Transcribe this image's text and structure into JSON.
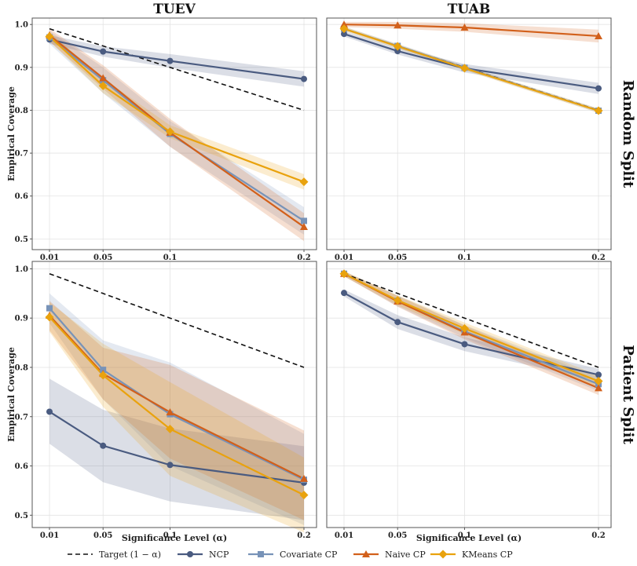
{
  "chart_data": {
    "type": "line",
    "column_titles": [
      "TUEV",
      "TUAB"
    ],
    "row_titles": [
      "Random Split",
      "Patient Split"
    ],
    "xlabel": "Significance Level (α)",
    "ylabel": "Empirical Coverage",
    "x": [
      0.01,
      0.05,
      0.1,
      0.2
    ],
    "x_tick_labels": [
      "0.01",
      "0.05",
      "0.1",
      "0.2"
    ],
    "y_ticks": [
      0.5,
      0.6,
      0.7,
      0.8,
      0.9,
      1.0
    ],
    "y_tick_labels": [
      "0.5",
      "0.6",
      "0.7",
      "0.8",
      "0.9",
      "1.0"
    ],
    "ylim": [
      0.475,
      1.015
    ],
    "grid": true,
    "legend_position": "bottom",
    "legend": [
      {
        "key": "target",
        "label": "Target (1 − α)",
        "color": "#111111",
        "marker": "none",
        "dash": "dashed"
      },
      {
        "key": "ncp",
        "label": "NCP",
        "color": "#4a5b80",
        "marker": "circle"
      },
      {
        "key": "covariate",
        "label": "Covariate CP",
        "color": "#7893b8",
        "marker": "square"
      },
      {
        "key": "naive",
        "label": "Naive CP",
        "color": "#d2601b",
        "marker": "triangle"
      },
      {
        "key": "kmeans",
        "label": "KMeans CP",
        "color": "#e9a20d",
        "marker": "diamond"
      }
    ],
    "panels": [
      {
        "row": 0,
        "col": 0,
        "series": [
          {
            "key": "target",
            "values": [
              0.99,
              0.95,
              0.9,
              0.8
            ]
          },
          {
            "key": "ncp",
            "values": [
              0.965,
              0.937,
              0.915,
              0.873
            ],
            "band": [
              [
                0.955,
                0.975
              ],
              [
                0.925,
                0.949
              ],
              [
                0.899,
                0.931
              ],
              [
                0.855,
                0.891
              ]
            ]
          },
          {
            "key": "covariate",
            "values": [
              0.97,
              0.87,
              0.745,
              0.542
            ],
            "band": [
              [
                0.955,
                0.985
              ],
              [
                0.84,
                0.9
              ],
              [
                0.715,
                0.775
              ],
              [
                0.51,
                0.574
              ]
            ]
          },
          {
            "key": "naive",
            "values": [
              0.975,
              0.875,
              0.748,
              0.528
            ],
            "band": [
              [
                0.96,
                0.99
              ],
              [
                0.85,
                0.905
              ],
              [
                0.715,
                0.78
              ],
              [
                0.495,
                0.56
              ]
            ]
          },
          {
            "key": "kmeans",
            "values": [
              0.972,
              0.857,
              0.75,
              0.633
            ],
            "band": [
              [
                0.962,
                0.982
              ],
              [
                0.84,
                0.874
              ],
              [
                0.735,
                0.765
              ],
              [
                0.615,
                0.651
              ]
            ]
          }
        ]
      },
      {
        "row": 0,
        "col": 1,
        "series": [
          {
            "key": "target",
            "values": [
              0.99,
              0.95,
              0.9,
              0.8
            ]
          },
          {
            "key": "ncp",
            "values": [
              0.978,
              0.938,
              0.898,
              0.851
            ],
            "band": [
              [
                0.972,
                0.984
              ],
              [
                0.93,
                0.946
              ],
              [
                0.888,
                0.908
              ],
              [
                0.838,
                0.864
              ]
            ]
          },
          {
            "key": "covariate",
            "values": [
              0.99,
              0.95,
              0.899,
              0.799
            ],
            "band": [
              [
                0.985,
                0.995
              ],
              [
                0.945,
                0.955
              ],
              [
                0.894,
                0.904
              ],
              [
                0.794,
                0.804
              ]
            ]
          },
          {
            "key": "naive",
            "values": [
              1.0,
              0.998,
              0.993,
              0.973
            ],
            "band": [
              [
                0.994,
                1.006
              ],
              [
                0.99,
                1.006
              ],
              [
                0.983,
                1.003
              ],
              [
                0.958,
                0.988
              ]
            ]
          },
          {
            "key": "kmeans",
            "values": [
              0.99,
              0.949,
              0.898,
              0.799
            ],
            "band": [
              [
                0.985,
                0.995
              ],
              [
                0.944,
                0.954
              ],
              [
                0.893,
                0.903
              ],
              [
                0.794,
                0.804
              ]
            ]
          }
        ]
      },
      {
        "row": 1,
        "col": 0,
        "series": [
          {
            "key": "target",
            "values": [
              0.99,
              0.95,
              0.9,
              0.8
            ]
          },
          {
            "key": "ncp",
            "values": [
              0.71,
              0.641,
              0.602,
              0.566
            ],
            "band": [
              [
                0.645,
                0.777
              ],
              [
                0.567,
                0.714
              ],
              [
                0.528,
                0.676
              ],
              [
                0.49,
                0.64
              ]
            ]
          },
          {
            "key": "covariate",
            "values": [
              0.92,
              0.795,
              0.705,
              0.572
            ],
            "band": [
              [
                0.89,
                0.95
              ],
              [
                0.735,
                0.855
              ],
              [
                0.6,
                0.81
              ],
              [
                0.48,
                0.665
              ]
            ]
          },
          {
            "key": "naive",
            "values": [
              0.905,
              0.787,
              0.709,
              0.574
            ],
            "band": [
              [
                0.875,
                0.935
              ],
              [
                0.735,
                0.84
              ],
              [
                0.615,
                0.805
              ],
              [
                0.49,
                0.672
              ]
            ]
          },
          {
            "key": "kmeans",
            "values": [
              0.902,
              0.784,
              0.675,
              0.541
            ],
            "band": [
              [
                0.872,
                0.932
              ],
              [
                0.72,
                0.848
              ],
              [
                0.58,
                0.77
              ],
              [
                0.465,
                0.617
              ]
            ]
          }
        ]
      },
      {
        "row": 1,
        "col": 1,
        "series": [
          {
            "key": "target",
            "values": [
              0.99,
              0.95,
              0.9,
              0.8
            ]
          },
          {
            "key": "ncp",
            "values": [
              0.951,
              0.892,
              0.847,
              0.785
            ],
            "band": [
              [
                0.944,
                0.958
              ],
              [
                0.878,
                0.906
              ],
              [
                0.833,
                0.861
              ],
              [
                0.773,
                0.797
              ]
            ]
          },
          {
            "key": "covariate",
            "values": [
              0.99,
              0.935,
              0.873,
              0.766
            ],
            "band": [
              [
                0.985,
                0.995
              ],
              [
                0.924,
                0.946
              ],
              [
                0.86,
                0.886
              ],
              [
                0.752,
                0.78
              ]
            ]
          },
          {
            "key": "naive",
            "values": [
              0.99,
              0.934,
              0.871,
              0.758
            ],
            "band": [
              [
                0.985,
                0.995
              ],
              [
                0.923,
                0.945
              ],
              [
                0.857,
                0.885
              ],
              [
                0.744,
                0.772
              ]
            ]
          },
          {
            "key": "kmeans",
            "values": [
              0.99,
              0.936,
              0.879,
              0.772
            ],
            "band": [
              [
                0.985,
                0.995
              ],
              [
                0.926,
                0.946
              ],
              [
                0.867,
                0.891
              ],
              [
                0.76,
                0.784
              ]
            ]
          }
        ]
      }
    ]
  }
}
